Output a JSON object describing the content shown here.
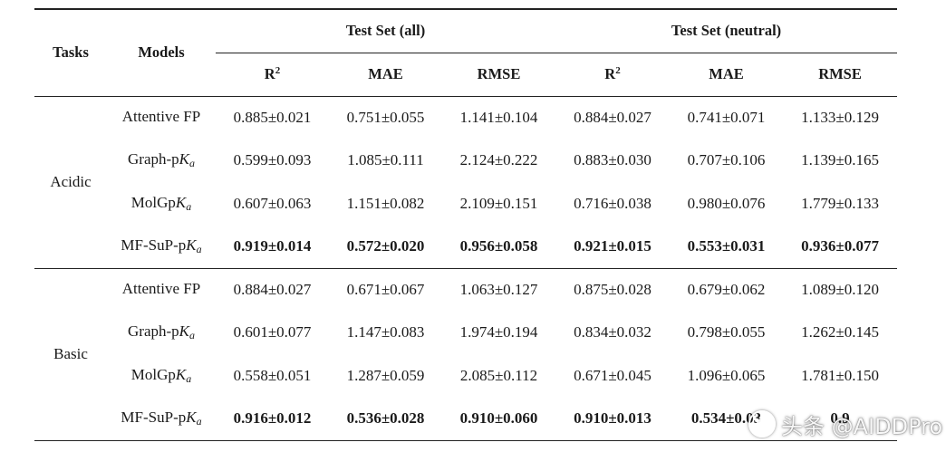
{
  "header": {
    "tasks": "Tasks",
    "models": "Models",
    "group_all": "Test Set (all)",
    "group_neutral": "Test Set (neutral)",
    "r2_base": "R",
    "r2_sup": "2",
    "mae": "MAE",
    "rmse": "RMSE"
  },
  "sections": [
    {
      "task": "Acidic",
      "rows": [
        {
          "model_pre": "Attentive FP",
          "model_k": "",
          "model_sub": "",
          "values": [
            "0.885±0.021",
            "0.751±0.055",
            "1.141±0.104",
            "0.884±0.027",
            "0.741±0.071",
            "1.133±0.129"
          ]
        },
        {
          "model_pre": "Graph-p",
          "model_k": "K",
          "model_sub": "a",
          "values": [
            "0.599±0.093",
            "1.085±0.111",
            "2.124±0.222",
            "0.883±0.030",
            "0.707±0.106",
            "1.139±0.165"
          ]
        },
        {
          "model_pre": "MolGp",
          "model_k": "K",
          "model_sub": "a",
          "values": [
            "0.607±0.063",
            "1.151±0.082",
            "2.109±0.151",
            "0.716±0.038",
            "0.980±0.076",
            "1.779±0.133"
          ]
        },
        {
          "model_pre": "MF-SuP-p",
          "model_k": "K",
          "model_sub": "a",
          "values": [
            "0.919±0.014",
            "0.572±0.020",
            "0.956±0.058",
            "0.921±0.015",
            "0.553±0.031",
            "0.936±0.077"
          ]
        }
      ]
    },
    {
      "task": "Basic",
      "rows": [
        {
          "model_pre": "Attentive FP",
          "model_k": "",
          "model_sub": "",
          "values": [
            "0.884±0.027",
            "0.671±0.067",
            "1.063±0.127",
            "0.875±0.028",
            "0.679±0.062",
            "1.089±0.120"
          ]
        },
        {
          "model_pre": "Graph-p",
          "model_k": "K",
          "model_sub": "a",
          "values": [
            "0.601±0.077",
            "1.147±0.083",
            "1.974±0.194",
            "0.834±0.032",
            "0.798±0.055",
            "1.262±0.145"
          ]
        },
        {
          "model_pre": "MolGp",
          "model_k": "K",
          "model_sub": "a",
          "values": [
            "0.558±0.051",
            "1.287±0.059",
            "2.085±0.112",
            "0.671±0.045",
            "1.096±0.065",
            "1.781±0.150"
          ]
        },
        {
          "model_pre": "MF-SuP-p",
          "model_k": "K",
          "model_sub": "a",
          "values": [
            "0.916±0.012",
            "0.536±0.028",
            "0.910±0.060",
            "0.910±0.013",
            "0.534±0.03",
            "0.9"
          ]
        }
      ]
    }
  ],
  "watermark": {
    "icon": "toutiao-logo-icon",
    "text": "头条 @AIDDPro"
  }
}
